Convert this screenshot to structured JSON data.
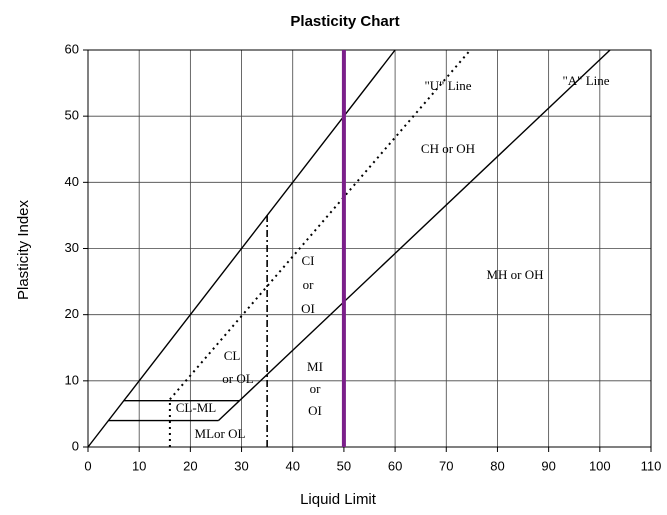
{
  "chart_data": {
    "type": "line",
    "title": "Plasticity Chart",
    "x_label": "Liquid Limit",
    "y_label": "Plasticity Index",
    "xlim": [
      0,
      110
    ],
    "ylim": [
      0,
      60
    ],
    "xticks": [
      0,
      10,
      20,
      30,
      40,
      50,
      60,
      70,
      80,
      90,
      100,
      110
    ],
    "yticks": [
      0,
      10,
      20,
      30,
      40,
      50,
      60
    ],
    "grid": true,
    "series": [
      {
        "color": "#000000",
        "style": "solid",
        "x": [
          0,
          60
        ],
        "values": [
          0,
          60
        ]
      },
      {
        "color": "#000000",
        "style": "dotted",
        "x": [
          16,
          74.7
        ],
        "values": [
          7.2,
          60
        ]
      },
      {
        "color": "#000000",
        "style": "solid",
        "x": [
          25.5,
          102
        ],
        "values": [
          4,
          60
        ]
      },
      {
        "color": "#000000",
        "style": "solid",
        "x": [
          7,
          29.6
        ],
        "values": [
          7,
          7
        ]
      },
      {
        "color": "#000000",
        "style": "solid",
        "x": [
          4,
          25.5
        ],
        "values": [
          4,
          4
        ]
      },
      {
        "color": "#000000",
        "style": "dotted",
        "x": [
          16,
          16
        ],
        "values": [
          0,
          7
        ]
      },
      {
        "color": "#000000",
        "style": "dashdot",
        "x": [
          35,
          35
        ],
        "values": [
          0,
          35
        ]
      },
      {
        "color": "#7b1f8a",
        "style": "thick",
        "x": [
          50,
          50
        ],
        "values": [
          0,
          60
        ]
      }
    ],
    "annotations": [
      [
        "\"U\" Line"
      ],
      [
        "\"A\" Line"
      ],
      [
        "CH or OH"
      ],
      [
        "CI",
        "or",
        "OI"
      ],
      [
        "CL",
        "or OL"
      ],
      [
        "MI",
        "or",
        "OI"
      ],
      [
        "MH or OH"
      ],
      [
        "CL-ML"
      ],
      [
        "MLor OL"
      ]
    ]
  }
}
